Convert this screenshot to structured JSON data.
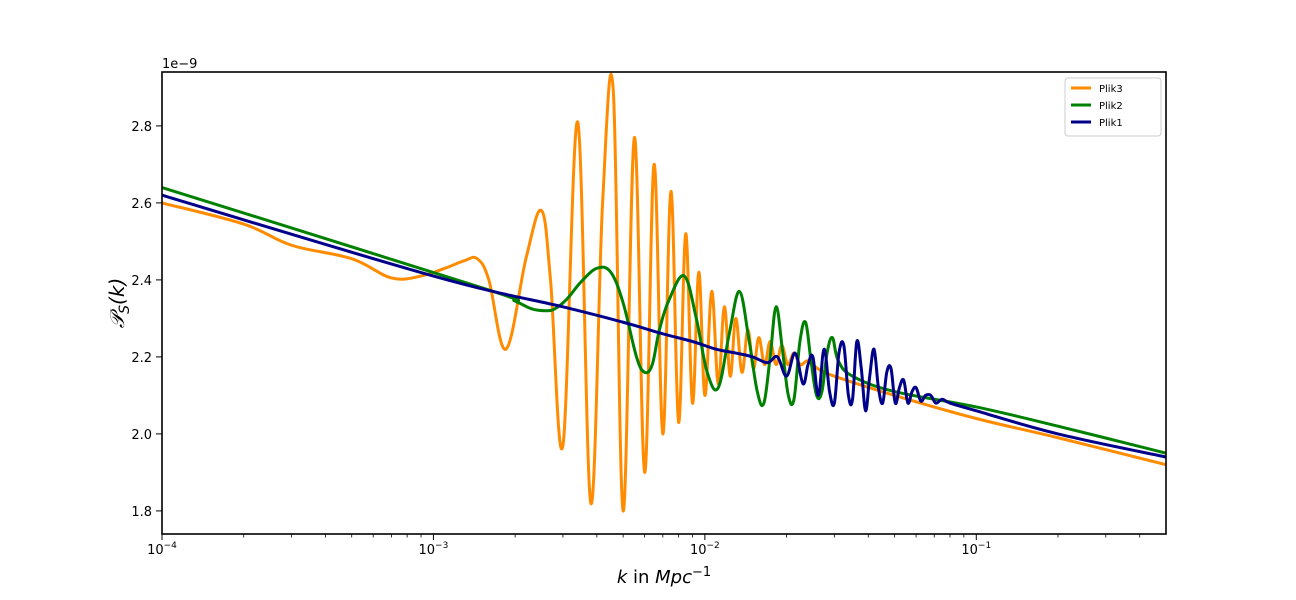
{
  "chart_data": {
    "type": "line",
    "xscale": "log",
    "xlim": [
      0.0001,
      0.5
    ],
    "ylim": [
      1.74e-09,
      2.94e-09
    ],
    "y_offset_text": "1e−9",
    "xlabel": {
      "base": "k",
      "mid": " in ",
      "unit": "Mpc",
      "exp": "−1"
    },
    "ylabel": {
      "base": "𝒫",
      "sub": "S",
      "arg": "(k)"
    },
    "x_ticks": [
      {
        "value": 0.0001,
        "base": "10",
        "exp": "−4"
      },
      {
        "value": 0.001,
        "base": "10",
        "exp": "−3"
      },
      {
        "value": 0.01,
        "base": "10",
        "exp": "−2"
      },
      {
        "value": 0.1,
        "base": "10",
        "exp": "−1"
      }
    ],
    "y_ticks": [
      {
        "value": 1.8e-09,
        "label": "1.8"
      },
      {
        "value": 2e-09,
        "label": "2.0"
      },
      {
        "value": 2.2e-09,
        "label": "2.2"
      },
      {
        "value": 2.4e-09,
        "label": "2.4"
      },
      {
        "value": 2.6e-09,
        "label": "2.6"
      },
      {
        "value": 2.8e-09,
        "label": "2.8"
      }
    ],
    "legend_position": "top-right",
    "grid": false,
    "series": [
      {
        "name": "Plik3",
        "color": "#ff8c00",
        "x": [
          0.0001,
          0.0002,
          0.0003,
          0.0005,
          0.0007,
          0.0009,
          0.0011,
          0.0013,
          0.00145,
          0.0016,
          0.00185,
          0.0022,
          0.0025,
          0.0027,
          0.003,
          0.0034,
          0.0038,
          0.0042,
          0.0046,
          0.005,
          0.0055,
          0.006,
          0.0065,
          0.007,
          0.0075,
          0.008,
          0.0085,
          0.009,
          0.0095,
          0.01,
          0.0106,
          0.0112,
          0.0118,
          0.0124,
          0.013,
          0.0137,
          0.0144,
          0.0151,
          0.0158,
          0.0166,
          0.0174,
          0.0183,
          0.0192,
          0.0202,
          0.0213,
          0.0225,
          0.024,
          0.026,
          0.03,
          0.05,
          0.1,
          0.2,
          0.5
        ],
        "y": [
          2.6e-09,
          2.545e-09,
          2.49e-09,
          2.455e-09,
          2.405e-09,
          2.41e-09,
          2.43e-09,
          2.45e-09,
          2.455e-09,
          2.4e-09,
          2.22e-09,
          2.46e-09,
          2.58e-09,
          2.4e-09,
          1.97e-09,
          2.81e-09,
          1.82e-09,
          2.6e-09,
          2.89e-09,
          1.8e-09,
          2.77e-09,
          1.9e-09,
          2.7e-09,
          2e-09,
          2.63e-09,
          2.03e-09,
          2.52e-09,
          2.08e-09,
          2.42e-09,
          2.1e-09,
          2.37e-09,
          2.13e-09,
          2.33e-09,
          2.15e-09,
          2.3e-09,
          2.16e-09,
          2.27e-09,
          2.17e-09,
          2.25e-09,
          2.18e-09,
          2.24e-09,
          2.18e-09,
          2.23e-09,
          2.18e-09,
          2.21e-09,
          2.18e-09,
          2.19e-09,
          2.17e-09,
          2.15e-09,
          2.1e-09,
          2.04e-09,
          1.99e-09,
          1.92e-09
        ]
      },
      {
        "name": "Plik2",
        "color": "#008000",
        "x": [
          0.0001,
          0.0015,
          0.002,
          0.0023,
          0.0026,
          0.0028,
          0.0031,
          0.0035,
          0.004,
          0.0045,
          0.005,
          0.0056,
          0.006,
          0.0064,
          0.0068,
          0.0074,
          0.0084,
          0.0093,
          0.0102,
          0.0112,
          0.0123,
          0.0134,
          0.0145,
          0.0156,
          0.0165,
          0.0174,
          0.0183,
          0.0193,
          0.0203,
          0.0213,
          0.0224,
          0.0235,
          0.0246,
          0.0258,
          0.027,
          0.0282,
          0.0295,
          0.031,
          0.035,
          0.05,
          0.1,
          0.2,
          0.5
        ],
        "y": [
          2.64e-09,
          2.38e-09,
          2.345e-09,
          2.325e-09,
          2.32e-09,
          2.325e-09,
          2.35e-09,
          2.395e-09,
          2.43e-09,
          2.42e-09,
          2.34e-09,
          2.2e-09,
          2.16e-09,
          2.18e-09,
          2.27e-09,
          2.35e-09,
          2.41e-09,
          2.3e-09,
          2.16e-09,
          2.12e-09,
          2.26e-09,
          2.37e-09,
          2.25e-09,
          2.11e-09,
          2.08e-09,
          2.2e-09,
          2.33e-09,
          2.22e-09,
          2.1e-09,
          2.09e-09,
          2.24e-09,
          2.29e-09,
          2.19e-09,
          2.1e-09,
          2.11e-09,
          2.21e-09,
          2.25e-09,
          2.19e-09,
          2.15e-09,
          2.11e-09,
          2.07e-09,
          2.02e-09,
          1.95e-09
        ]
      },
      {
        "name": "Plik1",
        "color": "#00008b",
        "x": [
          0.0001,
          0.001,
          0.003,
          0.005,
          0.007,
          0.009,
          0.011,
          0.013,
          0.015,
          0.017,
          0.0185,
          0.02,
          0.0215,
          0.023,
          0.024,
          0.025,
          0.0262,
          0.0275,
          0.0288,
          0.03,
          0.0312,
          0.0325,
          0.0338,
          0.035,
          0.0363,
          0.0377,
          0.0391,
          0.0405,
          0.042,
          0.0436,
          0.0452,
          0.0468,
          0.0485,
          0.0503,
          0.0521,
          0.054,
          0.056,
          0.058,
          0.06,
          0.0625,
          0.065,
          0.068,
          0.071,
          0.075,
          0.08,
          0.1,
          0.2,
          0.5
        ],
        "y": [
          2.62e-09,
          2.41e-09,
          2.33e-09,
          2.29e-09,
          2.26e-09,
          2.24e-09,
          2.22e-09,
          2.21e-09,
          2.2e-09,
          2.185e-09,
          2.2e-09,
          2.15e-09,
          2.21e-09,
          2.13e-09,
          2.18e-09,
          2.2e-09,
          2.1e-09,
          2.22e-09,
          2.11e-09,
          2.08e-09,
          2.21e-09,
          2.23e-09,
          2.1e-09,
          2.09e-09,
          2.24e-09,
          2.17e-09,
          2.06e-09,
          2.15e-09,
          2.22e-09,
          2.12e-09,
          2.08e-09,
          2.16e-09,
          2.17e-09,
          2.08e-09,
          2.12e-09,
          2.14e-09,
          2.08e-09,
          2.11e-09,
          2.12e-09,
          2.085e-09,
          2.1e-09,
          2.1e-09,
          2.08e-09,
          2.09e-09,
          2.08e-09,
          2.06e-09,
          2e-09,
          1.94e-09
        ]
      }
    ]
  }
}
